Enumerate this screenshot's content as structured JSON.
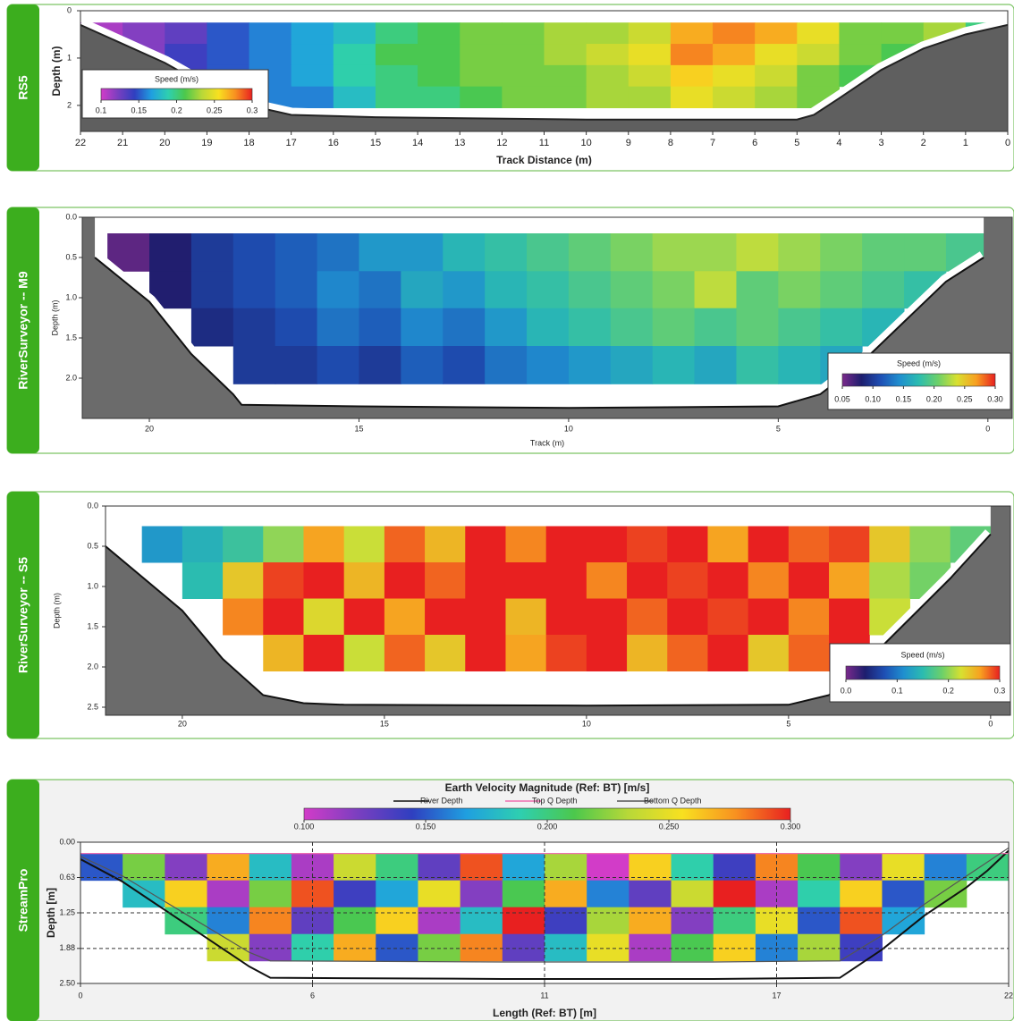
{
  "chart_data": [
    {
      "type": "heatmap",
      "panel_label": "RS5",
      "xlabel": "Track Distance (m)",
      "ylabel": "Depth (m)",
      "xlim": [
        22,
        0
      ],
      "ylim": [
        0,
        2.55
      ],
      "xticks": [
        22,
        21,
        20,
        19,
        18,
        17,
        16,
        15,
        14,
        13,
        12,
        11,
        10,
        9,
        8,
        7,
        6,
        5,
        4,
        3,
        2,
        1,
        0
      ],
      "yticks": [
        0,
        1,
        2
      ],
      "grid": false,
      "bank_fill": "#5f5f5f",
      "x": [
        21.5,
        20.5,
        19.5,
        18.5,
        17.5,
        16.5,
        15.5,
        14.5,
        13.5,
        12.5,
        11.5,
        10.5,
        9.5,
        8.5,
        7.5,
        6.5,
        5.5,
        4.5,
        3.5,
        2.5,
        1.5,
        0.5
      ],
      "depth_edges": [
        0.25,
        0.7,
        1.15,
        1.6,
        2.05
      ],
      "speed": [
        [
          0.11,
          0.12,
          0.13,
          0.15,
          0.16,
          0.17,
          0.18,
          0.2,
          0.21,
          0.22,
          0.22,
          0.23,
          0.23,
          0.24,
          0.27,
          0.28,
          0.27,
          0.25,
          0.22,
          0.22,
          0.23,
          0.2
        ],
        [
          null,
          0.12,
          0.14,
          0.15,
          0.16,
          0.17,
          0.19,
          0.21,
          0.21,
          0.22,
          0.22,
          0.23,
          0.24,
          0.25,
          0.28,
          0.27,
          0.25,
          0.24,
          0.22,
          0.21,
          null,
          null
        ],
        [
          null,
          null,
          0.14,
          0.15,
          0.16,
          0.17,
          0.19,
          0.2,
          0.21,
          0.22,
          0.22,
          0.22,
          0.23,
          0.24,
          0.26,
          0.25,
          0.24,
          0.22,
          0.21,
          null,
          null,
          null
        ],
        [
          null,
          null,
          null,
          0.15,
          0.16,
          0.16,
          0.18,
          0.2,
          0.2,
          0.21,
          0.22,
          0.22,
          0.23,
          0.23,
          0.25,
          0.24,
          0.23,
          0.22,
          null,
          null,
          null,
          null
        ]
      ],
      "colorbar": {
        "title": "Speed (m/s)",
        "range": [
          0.1,
          0.3
        ],
        "ticks": [
          0.1,
          0.15,
          0.2,
          0.25,
          0.3
        ],
        "colors": [
          "#d23cc8",
          "#7a3fc0",
          "#2f3fc0",
          "#1f9fe0",
          "#2ecfb0",
          "#4cc84c",
          "#b8d838",
          "#f8e020",
          "#f89020",
          "#e82020"
        ]
      },
      "profiles": [
        {
          "color": "#222222",
          "x": [
            22,
            21,
            20,
            19,
            18,
            17,
            15,
            10,
            5,
            4.6,
            4,
            3,
            2,
            1,
            0
          ],
          "depth": [
            0.3,
            0.7,
            1.1,
            1.6,
            2.0,
            2.2,
            2.25,
            2.3,
            2.3,
            2.2,
            1.85,
            1.25,
            0.8,
            0.5,
            0.3
          ]
        }
      ]
    },
    {
      "type": "heatmap",
      "panel_label": "RiverSurveyor -- M9",
      "xlabel": "Track (m)",
      "ylabel": "Depth (m)",
      "xlim": [
        21.6,
        -0.58
      ],
      "ylim": [
        0,
        2.5
      ],
      "xticks": [
        20,
        15,
        10,
        5,
        0
      ],
      "yticks": [
        {
          "value": 0,
          "label": "0.0"
        },
        0.5,
        {
          "value": 1,
          "label": "1.0"
        },
        1.5,
        {
          "value": 2,
          "label": "2.0"
        }
      ],
      "grid": false,
      "bank_fill": "#6b6b6b",
      "x": [
        20.5,
        19.5,
        18.5,
        17.5,
        16.5,
        15.5,
        14.5,
        13.5,
        12.5,
        11.5,
        10.5,
        9.5,
        8.5,
        7.5,
        6.5,
        5.5,
        4.5,
        3.5,
        2.5,
        1.5,
        0.5
      ],
      "depth_edges": [
        0.2,
        0.67,
        1.13,
        1.6,
        2.07
      ],
      "speed": [
        [
          0.06,
          0.08,
          0.1,
          0.11,
          0.12,
          0.13,
          0.15,
          0.15,
          0.17,
          0.18,
          0.19,
          0.2,
          0.21,
          0.22,
          0.22,
          0.23,
          0.22,
          0.21,
          0.2,
          0.2,
          0.19
        ],
        [
          null,
          0.08,
          0.1,
          0.11,
          0.12,
          0.14,
          0.13,
          0.16,
          0.15,
          0.17,
          0.18,
          0.19,
          0.2,
          0.21,
          0.23,
          0.2,
          0.21,
          0.2,
          0.19,
          0.18,
          null
        ],
        [
          null,
          null,
          0.09,
          0.1,
          0.11,
          0.13,
          0.12,
          0.14,
          0.13,
          0.15,
          0.17,
          0.18,
          0.19,
          0.2,
          0.19,
          0.2,
          0.19,
          0.18,
          0.17,
          null,
          null
        ],
        [
          null,
          null,
          null,
          0.1,
          0.1,
          0.11,
          0.1,
          0.12,
          0.11,
          0.13,
          0.14,
          0.15,
          0.16,
          0.17,
          0.16,
          0.18,
          0.17,
          0.16,
          null,
          null,
          null
        ]
      ],
      "colorbar": {
        "title": "Speed (m/s)",
        "range": [
          0.05,
          0.3
        ],
        "ticks": [
          0.05,
          {
            "value": 0.1,
            "label": "0.10"
          },
          0.15,
          {
            "value": 0.2,
            "label": "0.20"
          },
          0.25,
          {
            "value": 0.3,
            "label": "0.30"
          }
        ],
        "colors": [
          "#7b2a8c",
          "#1d1e6e",
          "#1e4fb4",
          "#1f8fcf",
          "#2bbcb0",
          "#6cd06a",
          "#d8e030",
          "#f8a020",
          "#e82020"
        ]
      },
      "profiles": [
        {
          "color": "#111111",
          "x": [
            21.3,
            20,
            19,
            18,
            17.8,
            15,
            10,
            5,
            4,
            3,
            2,
            1,
            0.1
          ],
          "depth": [
            0.5,
            1.05,
            1.7,
            2.2,
            2.33,
            2.35,
            2.37,
            2.35,
            2.2,
            1.8,
            1.3,
            0.8,
            0.5
          ]
        }
      ]
    },
    {
      "type": "heatmap",
      "panel_label": "RiverSurveyor -- S5",
      "ylabel": "Depth (m)",
      "xlim": [
        21.9,
        -0.49
      ],
      "ylim": [
        0,
        2.6
      ],
      "xticks": [
        20,
        15,
        10,
        5,
        0
      ],
      "yticks": [
        {
          "value": 0,
          "label": "0.0"
        },
        0.5,
        {
          "value": 1,
          "label": "1.0"
        },
        1.5,
        {
          "value": 2,
          "label": "2.0"
        },
        2.5
      ],
      "grid": false,
      "bank_fill": "#6b6b6b",
      "x": [
        20.5,
        19.5,
        18.5,
        17.5,
        16.5,
        15.5,
        14.5,
        13.5,
        12.5,
        11.5,
        10.5,
        9.5,
        8.5,
        7.5,
        6.5,
        5.5,
        4.5,
        3.5,
        2.5,
        1.5,
        0.5
      ],
      "depth_edges": [
        0.25,
        0.7,
        1.15,
        1.6,
        2.05
      ],
      "speed": [
        [
          0.12,
          0.14,
          0.16,
          0.2,
          0.26,
          0.22,
          0.28,
          0.25,
          0.3,
          0.27,
          0.3,
          0.3,
          0.29,
          0.3,
          0.26,
          0.3,
          0.28,
          0.29,
          0.24,
          0.2,
          0.18
        ],
        [
          null,
          0.15,
          0.24,
          0.29,
          0.3,
          0.25,
          0.3,
          0.28,
          0.3,
          0.3,
          0.3,
          0.27,
          0.3,
          0.29,
          0.3,
          0.27,
          0.3,
          0.26,
          0.21,
          0.19,
          null
        ],
        [
          null,
          null,
          0.27,
          0.3,
          0.23,
          0.3,
          0.26,
          0.3,
          0.3,
          0.25,
          0.3,
          0.3,
          0.28,
          0.3,
          0.29,
          0.3,
          0.27,
          0.3,
          0.22,
          null,
          null
        ],
        [
          null,
          null,
          null,
          0.25,
          0.3,
          0.22,
          0.28,
          0.24,
          0.3,
          0.26,
          0.29,
          0.3,
          0.25,
          0.28,
          0.3,
          0.24,
          0.28,
          0.3,
          null,
          null,
          null
        ]
      ],
      "colorbar": {
        "title": "Speed (m/s)",
        "range": [
          0,
          0.3
        ],
        "ticks": [
          {
            "value": 0,
            "label": "0.0"
          },
          0.1,
          0.2,
          0.3
        ],
        "colors": [
          "#7b2a8c",
          "#1d1e6e",
          "#1e4fb4",
          "#1f8fcf",
          "#2bbcb0",
          "#6cd06a",
          "#d8e030",
          "#f8a020",
          "#e82020"
        ]
      },
      "profiles": [
        {
          "color": "#111111",
          "x": [
            21.9,
            20,
            19,
            18,
            17,
            16,
            10,
            5,
            4,
            3,
            2,
            1,
            0
          ],
          "depth": [
            0.5,
            1.3,
            1.9,
            2.35,
            2.45,
            2.47,
            2.48,
            2.47,
            2.35,
            1.9,
            1.4,
            0.9,
            0.35
          ]
        }
      ]
    },
    {
      "type": "heatmap",
      "panel_label": "StreamPro",
      "xlabel": "Length (Ref: BT) [m]",
      "ylabel": "Depth [m]",
      "xlim": [
        0,
        22
      ],
      "ylim": [
        0,
        2.5
      ],
      "xticks": [
        0,
        {
          "value": 5.5,
          "label": "6"
        },
        11,
        {
          "value": 16.5,
          "label": "17"
        },
        22
      ],
      "yticks": [
        {
          "value": 0,
          "label": "0.00"
        },
        {
          "value": 0.625,
          "label": "0.63"
        },
        1.25,
        1.88,
        {
          "value": 2.5,
          "label": "2.50"
        }
      ],
      "grid": true,
      "x": [
        0.5,
        1.5,
        2.5,
        3.5,
        4.5,
        5.5,
        6.5,
        7.5,
        8.5,
        9.5,
        10.5,
        11.5,
        12.5,
        13.5,
        14.5,
        15.5,
        16.5,
        17.5,
        18.5,
        19.5,
        20.5,
        21.5
      ],
      "depth_edges": [
        0.2,
        0.675,
        1.15,
        1.625,
        2.1
      ],
      "speed": [
        [
          0.15,
          0.22,
          0.12,
          0.27,
          0.18,
          0.11,
          0.24,
          0.2,
          0.13,
          0.29,
          0.17,
          0.23,
          0.1,
          0.26,
          0.19,
          0.14,
          0.28,
          0.21,
          0.12,
          0.25,
          0.16,
          0.2
        ],
        [
          null,
          0.18,
          0.26,
          0.11,
          0.22,
          0.29,
          0.14,
          0.17,
          0.25,
          0.12,
          0.21,
          0.27,
          0.16,
          0.13,
          0.24,
          0.3,
          0.11,
          0.19,
          0.26,
          0.15,
          0.22,
          null
        ],
        [
          null,
          null,
          0.2,
          0.16,
          0.28,
          0.13,
          0.21,
          0.26,
          0.11,
          0.18,
          0.3,
          0.14,
          0.23,
          0.27,
          0.12,
          0.2,
          0.25,
          0.15,
          0.29,
          0.17,
          null,
          null
        ],
        [
          null,
          null,
          null,
          0.24,
          0.12,
          0.19,
          0.27,
          0.15,
          0.22,
          0.28,
          0.13,
          0.18,
          0.25,
          0.11,
          0.21,
          0.26,
          0.16,
          0.23,
          0.14,
          null,
          null,
          null
        ]
      ],
      "colorbar": {
        "title": "Earth Velocity Magnitude (Ref: BT) [m/s]",
        "range": [
          0.1,
          0.3
        ],
        "ticks": [
          {
            "value": 0.1,
            "label": "0.100"
          },
          {
            "value": 0.15,
            "label": "0.150"
          },
          {
            "value": 0.2,
            "label": "0.200"
          },
          {
            "value": 0.25,
            "label": "0.250"
          },
          {
            "value": 0.3,
            "label": "0.300"
          }
        ],
        "colors": [
          "#d23cc8",
          "#7a3fc0",
          "#2f3fc0",
          "#1f9fe0",
          "#2ecfb0",
          "#4cc84c",
          "#b8d838",
          "#f8e020",
          "#f89020",
          "#e82020"
        ]
      },
      "profiles": [
        {
          "name": "River Depth",
          "color": "#111111",
          "x": [
            0,
            1,
            2,
            3,
            4,
            4.5,
            10,
            15,
            18,
            19,
            20,
            21,
            21.5,
            22
          ],
          "depth": [
            0.3,
            0.7,
            1.2,
            1.7,
            2.2,
            2.4,
            2.42,
            2.42,
            2.4,
            1.9,
            1.3,
            0.8,
            0.5,
            0.15
          ]
        },
        {
          "name": "Top Q Depth",
          "color": "#f06eb0",
          "x": [
            0,
            1,
            2,
            3,
            4,
            4.5,
            10,
            15,
            18,
            19,
            20,
            21,
            21.5,
            22
          ],
          "depth": [
            0.2,
            0.2,
            0.2,
            0.2,
            0.2,
            0.2,
            0.2,
            0.2,
            0.2,
            0.2,
            0.2,
            0.2,
            0.2,
            0.2
          ]
        },
        {
          "name": "Bottom Q Depth",
          "color": "#555555",
          "x": [
            0,
            1,
            2,
            3,
            4,
            4.5,
            10,
            15,
            18,
            19,
            20,
            21,
            21.5,
            22
          ],
          "depth": [
            0.25,
            0.6,
            1.05,
            1.5,
            1.95,
            2.1,
            2.12,
            2.12,
            2.1,
            1.65,
            1.1,
            0.6,
            0.35,
            0.1
          ]
        }
      ]
    }
  ]
}
